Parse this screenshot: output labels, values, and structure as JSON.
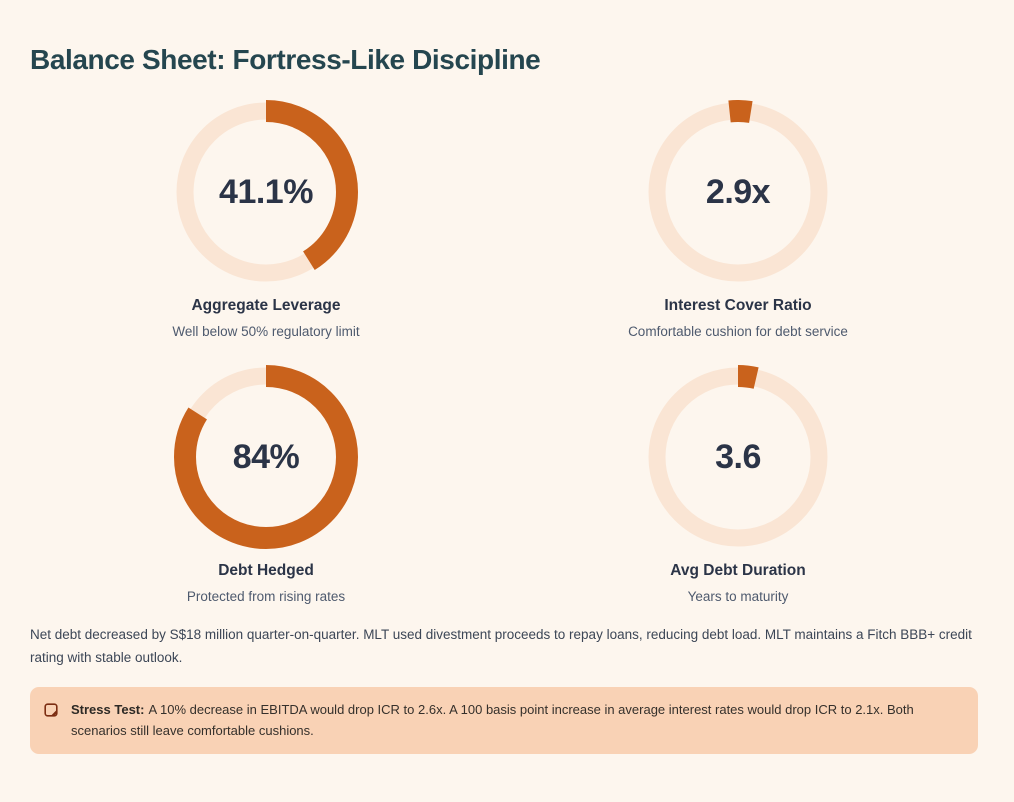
{
  "page": {
    "title": "Balance Sheet: Fortress-Like Discipline"
  },
  "chart_data": {
    "type": "donut-gauges",
    "colors": {
      "arc": "#C9621C",
      "track": "#FAE5D4",
      "value_text": "#2B3447"
    },
    "gauges": [
      {
        "value": "41.1%",
        "percent": 41.1,
        "start_offset_deg": 0,
        "label": "Aggregate Leverage",
        "sublabel": "Well below 50% regulatory limit"
      },
      {
        "value": "2.9x",
        "percent": 4.2,
        "start_offset_deg": -6,
        "label": "Interest Cover Ratio",
        "sublabel": "Comfortable cushion for debt service"
      },
      {
        "value": "84%",
        "percent": 84,
        "start_offset_deg": 0,
        "label": "Debt Hedged",
        "sublabel": "Protected from rising rates"
      },
      {
        "value": "3.6",
        "percent": 3.6,
        "start_offset_deg": 0,
        "label": "Avg Debt Duration",
        "sublabel": "Years to maturity"
      }
    ]
  },
  "summary": "Net debt decreased by S$18 million quarter-on-quarter. MLT used divestment proceeds to repay loans, reducing debt load. MLT maintains a Fitch BBB+ credit rating with stable outlook.",
  "callout": {
    "icon": "note-icon",
    "icon_color": "#7C2D12",
    "title": "Stress Test:",
    "text": "A 10% decrease in EBITDA would drop ICR to 2.6x. A 100 basis point increase in average interest rates would drop ICR to 2.1x. Both scenarios still leave comfortable cushions."
  }
}
